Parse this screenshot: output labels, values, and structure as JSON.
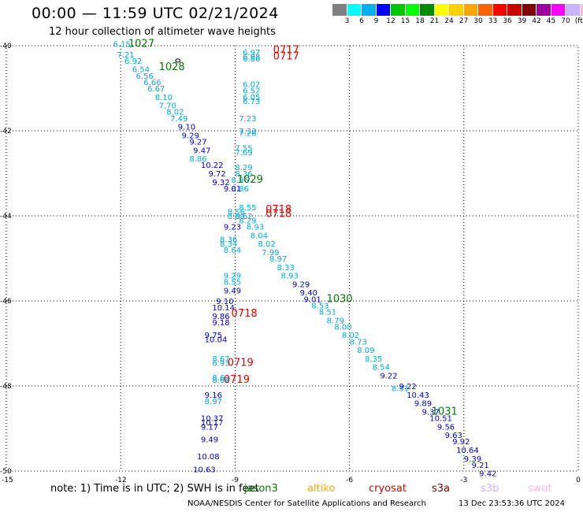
{
  "header": {
    "title": "00:00 — 11:59 UTC 02/21/2024",
    "subtitle": "12 hour collection of altimeter wave heights"
  },
  "color_scale": {
    "colors": [
      "#808080",
      "#00ffff",
      "#00b0f0",
      "#0000ff",
      "#00c800",
      "#00ff00",
      "#008c00",
      "#ffff00",
      "#ffd000",
      "#ffa500",
      "#ff6000",
      "#ff0000",
      "#c80000",
      "#800000",
      "#a000a0",
      "#ff00ff",
      "#c8b4ff",
      "#ffb4e6",
      "#000000"
    ],
    "labels": [
      "3",
      "6",
      "9",
      "12",
      "15",
      "18",
      "21",
      "24",
      "27",
      "30",
      "33",
      "36",
      "39",
      "42",
      "45",
      "70",
      "(ft)"
    ]
  },
  "axes": {
    "x_ticks": [
      "-15",
      "-12",
      "-9",
      "-6",
      "-3",
      "0"
    ],
    "y_ticks": [
      "-40",
      "-42",
      "-44",
      "-46",
      "-48",
      "-50"
    ]
  },
  "colors": {
    "light": "#00aadd",
    "dark": "#0000cc",
    "green": "#007a00",
    "red": "#e00000"
  },
  "heights": {
    "light": [
      {
        "lon": -12.2,
        "lat": -39.95,
        "v": "6.15"
      },
      {
        "lon": -12.1,
        "lat": -40.2,
        "v": "7.21"
      },
      {
        "lon": -11.9,
        "lat": -40.35,
        "v": "6.92"
      },
      {
        "lon": -11.7,
        "lat": -40.55,
        "v": "6.54"
      },
      {
        "lon": -11.6,
        "lat": -40.7,
        "v": "6.56"
      },
      {
        "lon": -11.4,
        "lat": -40.85,
        "v": "6.66"
      },
      {
        "lon": -11.3,
        "lat": -41.0,
        "v": "6.67"
      },
      {
        "lon": -11.1,
        "lat": -41.2,
        "v": "8.10"
      },
      {
        "lon": -11.0,
        "lat": -41.4,
        "v": "7.70"
      },
      {
        "lon": -10.8,
        "lat": -41.55,
        "v": "8.02"
      },
      {
        "lon": -10.7,
        "lat": -41.7,
        "v": "7.49"
      },
      {
        "lon": -10.2,
        "lat": -42.65,
        "v": "8.86"
      },
      {
        "lon": -9.4,
        "lat": -44.55,
        "v": "8.36"
      },
      {
        "lon": -9.4,
        "lat": -44.65,
        "v": "8.34"
      },
      {
        "lon": -9.3,
        "lat": -44.8,
        "v": "8.64"
      },
      {
        "lon": -8.8,
        "lat": -40.15,
        "v": "6.97"
      },
      {
        "lon": -8.8,
        "lat": -40.25,
        "v": "6.98"
      },
      {
        "lon": -8.8,
        "lat": -40.3,
        "v": "6.86"
      },
      {
        "lon": -8.8,
        "lat": -40.9,
        "v": "6.02"
      },
      {
        "lon": -8.8,
        "lat": -41.05,
        "v": "6.52"
      },
      {
        "lon": -8.8,
        "lat": -41.2,
        "v": "6.05"
      },
      {
        "lon": -8.8,
        "lat": -41.3,
        "v": "6.73"
      },
      {
        "lon": -8.9,
        "lat": -41.7,
        "v": "7.23"
      },
      {
        "lon": -8.9,
        "lat": -42.0,
        "v": "7.33"
      },
      {
        "lon": -8.9,
        "lat": -42.05,
        "v": "7.26"
      },
      {
        "lon": -9.0,
        "lat": -42.4,
        "v": "7.55"
      },
      {
        "lon": -9.0,
        "lat": -42.5,
        "v": "7.69"
      },
      {
        "lon": -9.0,
        "lat": -42.85,
        "v": "8.29"
      },
      {
        "lon": -9.0,
        "lat": -43.0,
        "v": "8.36"
      },
      {
        "lon": -9.1,
        "lat": -43.15,
        "v": "8.96"
      },
      {
        "lon": -9.1,
        "lat": -43.35,
        "v": "8.86"
      },
      {
        "lon": -8.9,
        "lat": -43.8,
        "v": "8.55"
      },
      {
        "lon": -9.2,
        "lat": -43.9,
        "v": "8.56"
      },
      {
        "lon": -9.2,
        "lat": -44.0,
        "v": "8.58"
      },
      {
        "lon": -9.0,
        "lat": -44.0,
        "v": "8.62"
      },
      {
        "lon": -8.9,
        "lat": -44.1,
        "v": "8.29"
      },
      {
        "lon": -8.7,
        "lat": -44.25,
        "v": "8.93"
      },
      {
        "lon": -8.6,
        "lat": -44.45,
        "v": "8.04"
      },
      {
        "lon": -8.4,
        "lat": -44.65,
        "v": "8.02"
      },
      {
        "lon": -8.3,
        "lat": -44.85,
        "v": "7.99"
      },
      {
        "lon": -8.1,
        "lat": -45.0,
        "v": "8.97"
      },
      {
        "lon": -7.9,
        "lat": -45.2,
        "v": "8.33"
      },
      {
        "lon": -7.8,
        "lat": -45.4,
        "v": "8.93"
      },
      {
        "lon": -9.3,
        "lat": -45.4,
        "v": "9.29"
      },
      {
        "lon": -9.3,
        "lat": -45.55,
        "v": "8.55"
      },
      {
        "lon": -7.0,
        "lat": -46.1,
        "v": "8.53"
      },
      {
        "lon": -6.8,
        "lat": -46.25,
        "v": "8.51"
      },
      {
        "lon": -6.6,
        "lat": -46.45,
        "v": "8.79"
      },
      {
        "lon": -6.4,
        "lat": -46.6,
        "v": "8.00"
      },
      {
        "lon": -6.2,
        "lat": -46.8,
        "v": "8.02"
      },
      {
        "lon": -6.0,
        "lat": -46.95,
        "v": "8.73"
      },
      {
        "lon": -5.8,
        "lat": -47.15,
        "v": "8.09"
      },
      {
        "lon": -5.6,
        "lat": -47.35,
        "v": "8.35"
      },
      {
        "lon": -5.4,
        "lat": -47.55,
        "v": "8.54"
      },
      {
        "lon": -4.9,
        "lat": -48.05,
        "v": "8.51"
      },
      {
        "lon": -9.6,
        "lat": -47.35,
        "v": "8.67"
      },
      {
        "lon": -9.6,
        "lat": -47.45,
        "v": "6.93"
      },
      {
        "lon": -9.6,
        "lat": -47.8,
        "v": "8.62"
      },
      {
        "lon": -9.6,
        "lat": -47.85,
        "v": "8.62"
      },
      {
        "lon": -9.8,
        "lat": -48.35,
        "v": "8.97"
      }
    ],
    "dark": [
      {
        "lon": -10.5,
        "lat": -41.9,
        "v": "9.10"
      },
      {
        "lon": -10.4,
        "lat": -42.1,
        "v": "9.29"
      },
      {
        "lon": -10.2,
        "lat": -42.25,
        "v": "9.27"
      },
      {
        "lon": -10.1,
        "lat": -42.45,
        "v": "9.47"
      },
      {
        "lon": -9.9,
        "lat": -42.8,
        "v": "10.22"
      },
      {
        "lon": -9.7,
        "lat": -43.0,
        "v": "9.72"
      },
      {
        "lon": -9.6,
        "lat": -43.2,
        "v": "9.32"
      },
      {
        "lon": -9.3,
        "lat": -43.35,
        "v": "9.01"
      },
      {
        "lon": -9.3,
        "lat": -44.25,
        "v": "9.23"
      },
      {
        "lon": -7.5,
        "lat": -45.6,
        "v": "9.29"
      },
      {
        "lon": -7.3,
        "lat": -45.8,
        "v": "9.40"
      },
      {
        "lon": -7.2,
        "lat": -45.95,
        "v": "9.01"
      },
      {
        "lon": -9.3,
        "lat": -45.75,
        "v": "9.49"
      },
      {
        "lon": -9.5,
        "lat": -46.0,
        "v": "9.10"
      },
      {
        "lon": -9.6,
        "lat": -46.15,
        "v": "10.14"
      },
      {
        "lon": -9.6,
        "lat": -46.35,
        "v": "9.86"
      },
      {
        "lon": -9.6,
        "lat": -46.5,
        "v": "9.18"
      },
      {
        "lon": -9.8,
        "lat": -46.8,
        "v": "9.75"
      },
      {
        "lon": -9.8,
        "lat": -46.9,
        "v": "10.04"
      },
      {
        "lon": -5.2,
        "lat": -47.75,
        "v": "9.22"
      },
      {
        "lon": -4.7,
        "lat": -48.0,
        "v": "9.22"
      },
      {
        "lon": -4.5,
        "lat": -48.2,
        "v": "10.43"
      },
      {
        "lon": -4.3,
        "lat": -48.4,
        "v": "9.89"
      },
      {
        "lon": -4.1,
        "lat": -48.6,
        "v": "9.37"
      },
      {
        "lon": -3.9,
        "lat": -48.75,
        "v": "10.51"
      },
      {
        "lon": -3.7,
        "lat": -48.95,
        "v": "9.56"
      },
      {
        "lon": -3.5,
        "lat": -49.15,
        "v": "9.63"
      },
      {
        "lon": -3.3,
        "lat": -49.3,
        "v": "9.92"
      },
      {
        "lon": -3.2,
        "lat": -49.5,
        "v": "10.64"
      },
      {
        "lon": -3.0,
        "lat": -49.7,
        "v": "9.39"
      },
      {
        "lon": -2.8,
        "lat": -49.85,
        "v": "9.21"
      },
      {
        "lon": -2.6,
        "lat": -50.05,
        "v": "9.42"
      },
      {
        "lon": -9.8,
        "lat": -48.2,
        "v": "9.16"
      },
      {
        "lon": -9.9,
        "lat": -48.75,
        "v": "10.37"
      },
      {
        "lon": -9.9,
        "lat": -48.85,
        "v": "10.17"
      },
      {
        "lon": -9.9,
        "lat": -48.95,
        "v": "9.17"
      },
      {
        "lon": -9.9,
        "lat": -49.25,
        "v": "9.49"
      },
      {
        "lon": -10.0,
        "lat": -49.65,
        "v": "10.08"
      },
      {
        "lon": -10.1,
        "lat": -49.95,
        "v": "10.63"
      }
    ]
  },
  "green_labels": [
    {
      "lon": -11.8,
      "lat": -39.95,
      "v": "1027"
    },
    {
      "lon": -11.0,
      "lat": -40.5,
      "v": "1028"
    },
    {
      "lon": -8.95,
      "lat": -43.15,
      "v": "1029"
    },
    {
      "lon": -6.6,
      "lat": -45.95,
      "v": "1030"
    },
    {
      "lon": -3.85,
      "lat": -48.6,
      "v": "1031"
    }
  ],
  "red_labels": [
    {
      "lon": -8.0,
      "lat": -40.1,
      "v": "0717"
    },
    {
      "lon": -8.0,
      "lat": -40.25,
      "v": "0717"
    },
    {
      "lon": -8.2,
      "lat": -43.85,
      "v": "0718"
    },
    {
      "lon": -8.2,
      "lat": -43.95,
      "v": "0718"
    },
    {
      "lon": -9.1,
      "lat": -46.3,
      "v": "0718"
    },
    {
      "lon": -9.2,
      "lat": -47.45,
      "v": "0719"
    },
    {
      "lon": -9.3,
      "lat": -47.85,
      "v": "0719"
    }
  ],
  "note": "note: 1) Time is in UTC; 2) SWH is in feet",
  "satellites": [
    {
      "name": "jason3",
      "color": "#007a00"
    },
    {
      "name": "altiko",
      "color": "#ffa500"
    },
    {
      "name": "cryosat",
      "color": "#e00000"
    },
    {
      "name": "s3a",
      "color": "#800000"
    },
    {
      "name": "s3b",
      "color": "#c8b4ff"
    },
    {
      "name": "swot",
      "color": "#ffb4e6"
    }
  ],
  "footer": {
    "credit": "NOAA/NESDIS Center for Satellite Applications and Research",
    "timestamp": "13 Dec 23:53:36 UTC 2024"
  }
}
